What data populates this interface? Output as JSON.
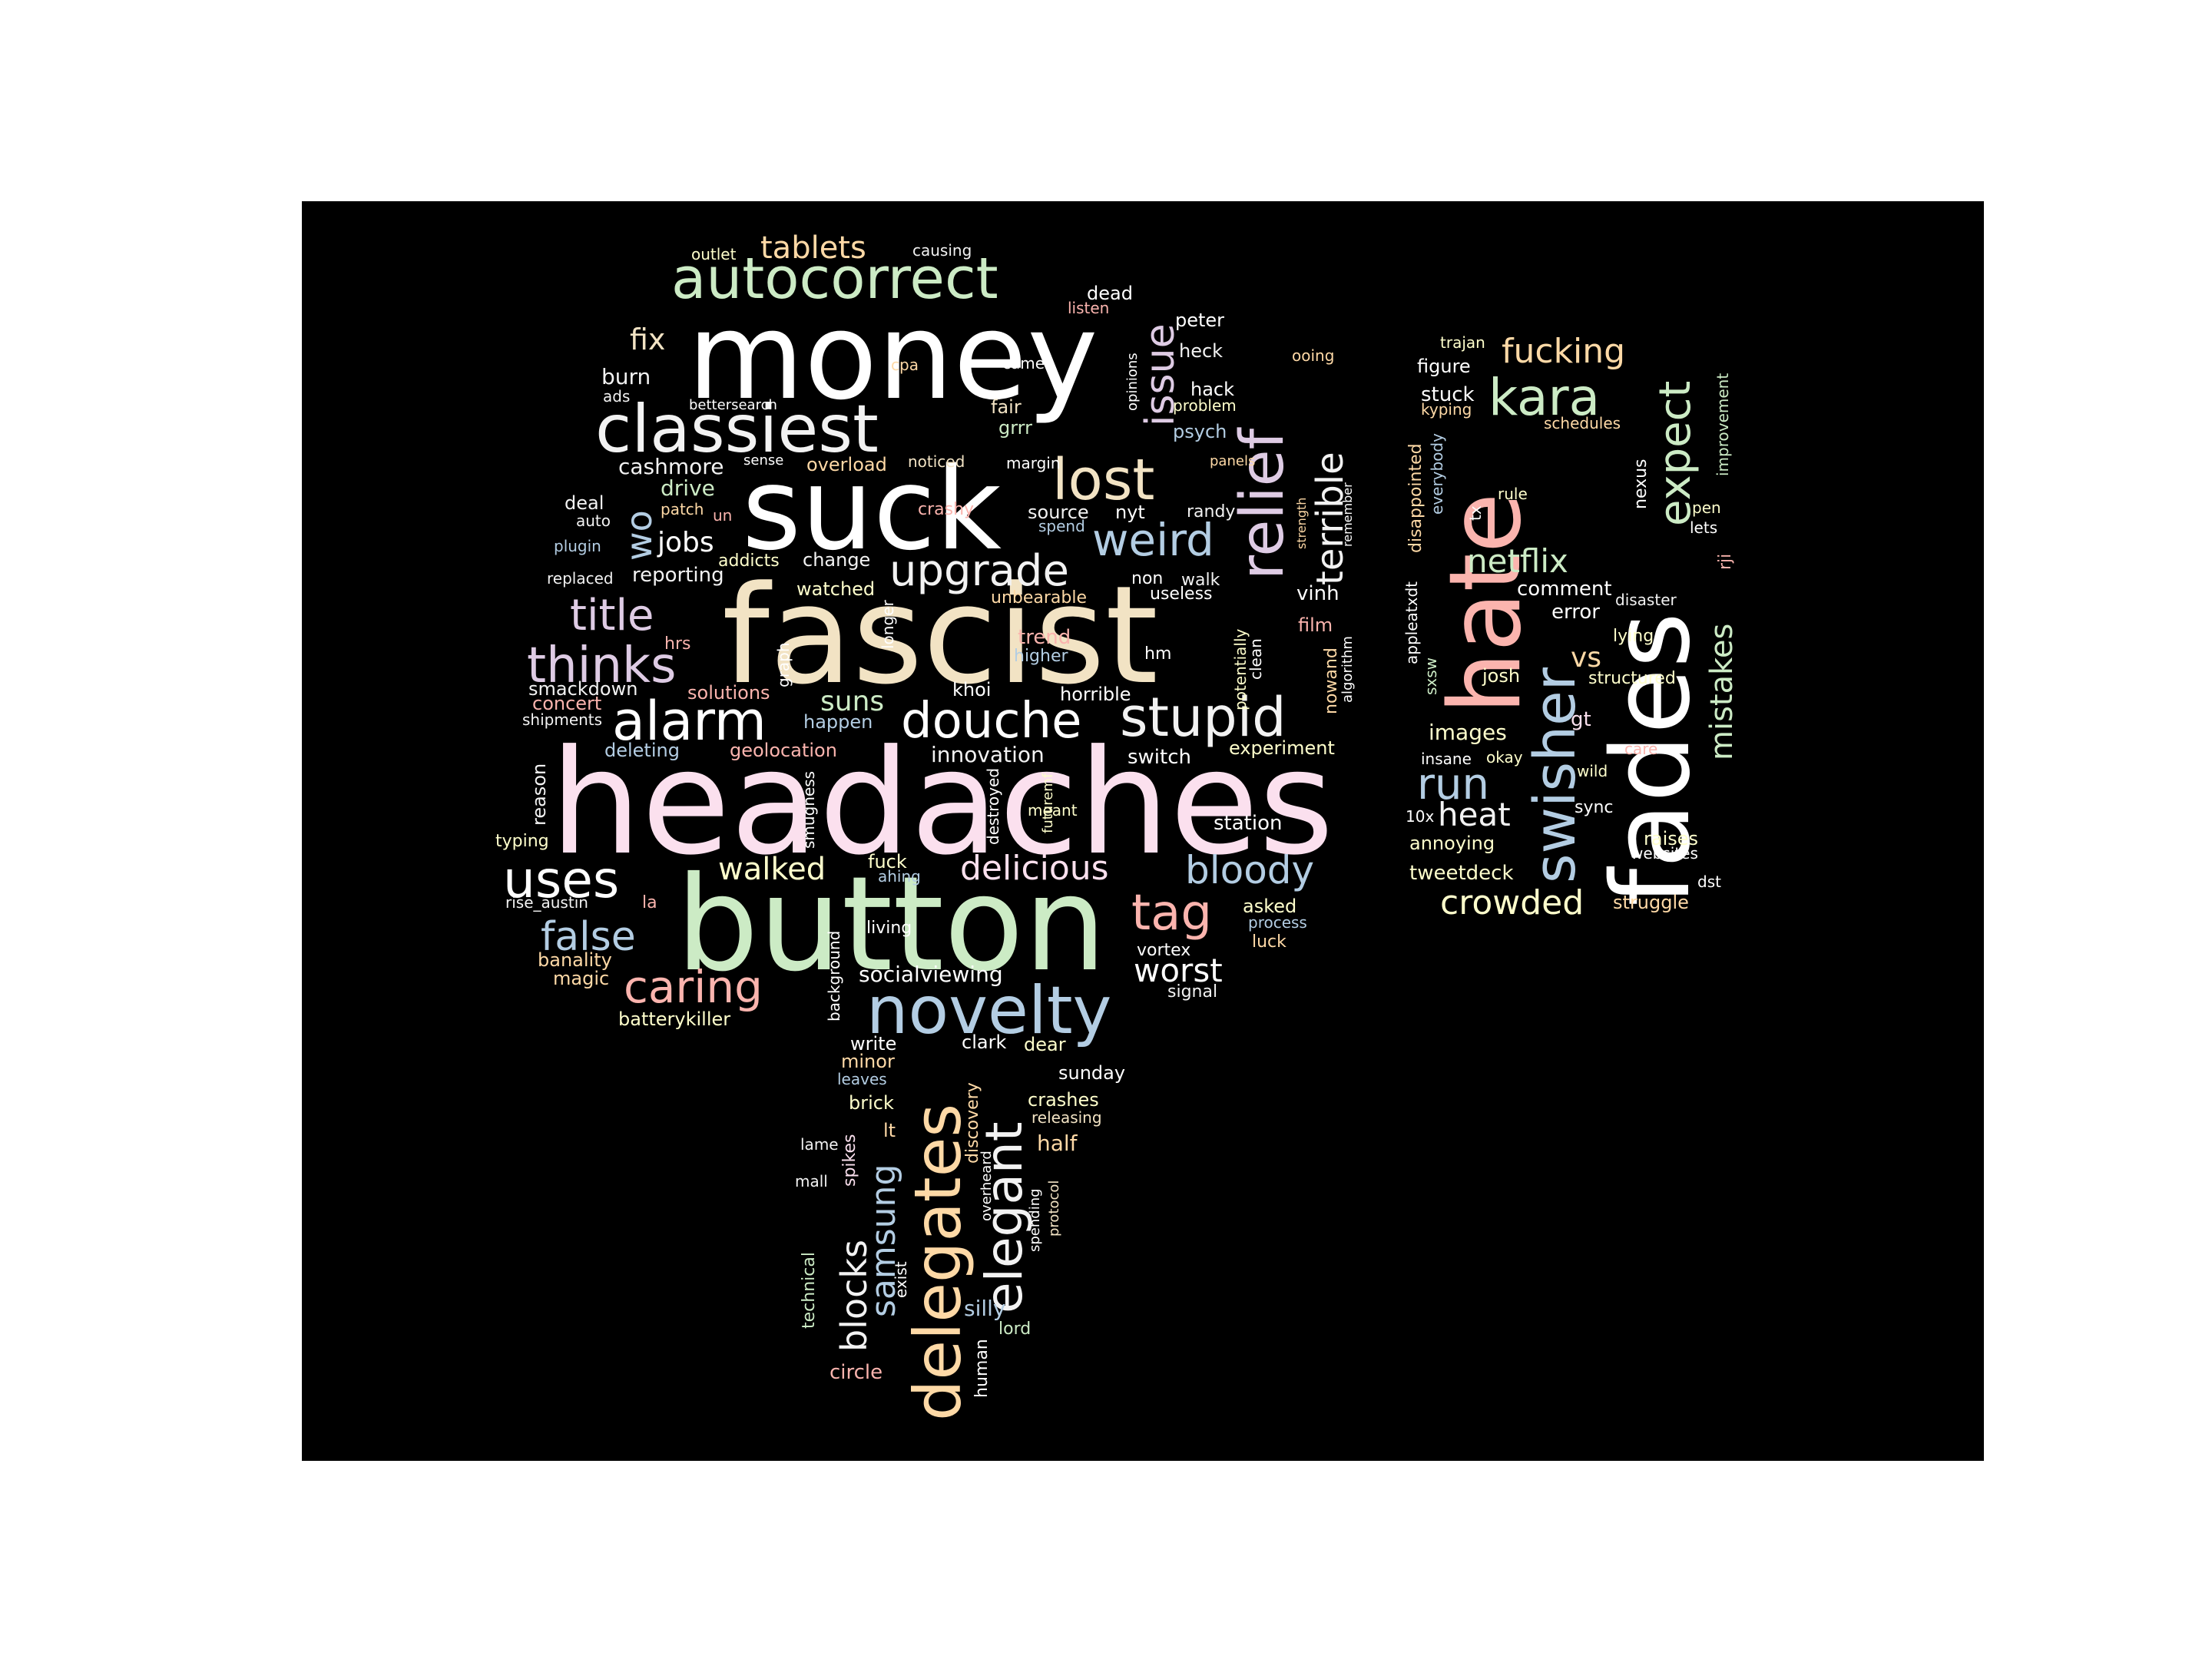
{
  "palette": {
    "white": "#ffffff",
    "pink": "#fbe0ee",
    "green": "#ccebc5",
    "cream": "#f2e3c4",
    "blue": "#b3cde3",
    "salmon": "#fbb4ae",
    "yellow": "#ffffcc",
    "peach": "#fed9a6",
    "lavender": "#decbe4",
    "light": "#f2f2f2"
  },
  "words": [
    "headaches",
    "fascist",
    "button",
    "money",
    "suck",
    "fades",
    "hate",
    "classiest",
    "novelty",
    "autocorrect",
    "delegates",
    "elegant",
    "relief",
    "swisher",
    "douche",
    "stupid",
    "alarm",
    "lost",
    "thinks",
    "tag",
    "upgrade",
    "weird",
    "kara",
    "title",
    "uses",
    "caring",
    "false",
    "issue",
    "terrible",
    "bloody",
    "expect",
    "delicious",
    "run",
    "mistakes",
    "fucking",
    "netflix",
    "heat",
    "crowded",
    "worst",
    "tablets",
    "walked",
    "samsung",
    "blocks",
    "wo",
    "jobs",
    "suns",
    "fix",
    "socialviewing",
    "innovation",
    "switch",
    "vs",
    "burn",
    "cashmore",
    "drive",
    "overload",
    "source",
    "nyt",
    "randy",
    "deal",
    "auto",
    "plugin",
    "addicts",
    "change",
    "reporting",
    "replaced",
    "watched",
    "unbearable",
    "non",
    "walk",
    "useless",
    "film",
    "vinh",
    "trend",
    "higher",
    "hrs",
    "graph",
    "longer",
    "smackdown",
    "concert",
    "shipments",
    "solutions",
    "happen",
    "deleting",
    "geolocation",
    "khoi",
    "horrible",
    "hm",
    "experiment",
    "reason",
    "typing",
    "rise_austin",
    "la",
    "smugness",
    "destroyed",
    "meant",
    "futuremf",
    "station",
    "fuck",
    "ahing",
    "asked",
    "process",
    "luck",
    "living",
    "banality",
    "magic",
    "batterykiller",
    "background",
    "vortex",
    "signal",
    "write",
    "clark",
    "dear",
    "minor",
    "leaves",
    "sunday",
    "brick",
    "discovery",
    "crashes",
    "releasing",
    "lt",
    "half",
    "lame",
    "spikes",
    "mall",
    "overheard",
    "spending",
    "protocol",
    "technical",
    "exist",
    "silly",
    "lord",
    "human",
    "circle",
    "outlet",
    "causing",
    "dead",
    "listen",
    "peter",
    "heck",
    "opinions",
    "cpa",
    "came",
    "ooing",
    "hack",
    "ads",
    "fair",
    "bettersearch",
    "problem",
    "grrr",
    "psych",
    "sense",
    "noticed",
    "margin",
    "panels",
    "patch",
    "un",
    "crashy",
    "spend",
    "strength",
    "potentially",
    "clean",
    "nowand",
    "algorithm",
    "remember",
    "trajan",
    "figure",
    "stuck",
    "kyping",
    "schedules",
    "disappointed",
    "appleatxdt",
    "everybody",
    "nexus",
    "tx",
    "rule",
    "pen",
    "lets",
    "rji",
    "improvement",
    "comment",
    "lying",
    "error",
    "disaster",
    "josh",
    "structured",
    "sxsw",
    "images",
    "gt",
    "insane",
    "okay",
    "care",
    "wild",
    "10x",
    "sync",
    "annoying",
    "raises",
    "websites",
    "tweetdeck",
    "dst",
    "struggle"
  ]
}
